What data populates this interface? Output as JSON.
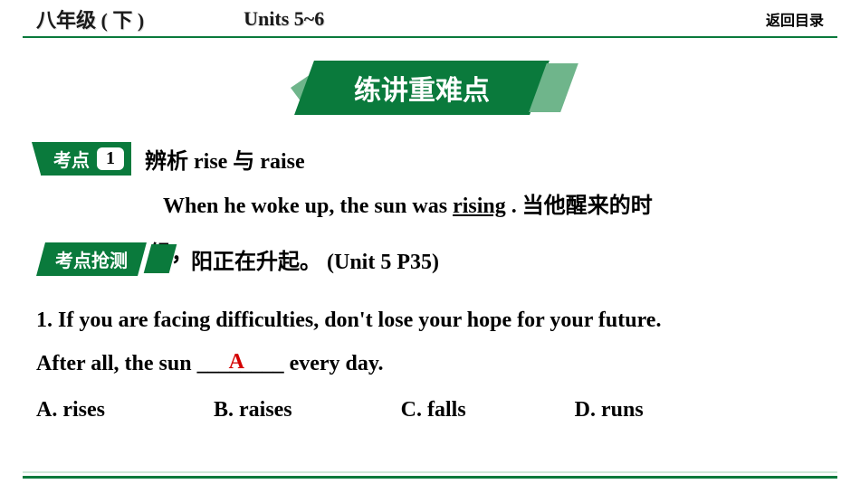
{
  "header": {
    "grade": "八年级 ( 下 )",
    "units": "Units 5~6",
    "returnMenu": "返回目录"
  },
  "banner": {
    "title": "练讲重难点"
  },
  "kaodian": {
    "label": "考点",
    "number": "1",
    "title": "辨析 rise 与 raise"
  },
  "example": {
    "sentence_prefix": "When he woke up, the sun was ",
    "sentence_underlined": "rising",
    "sentence_suffix": " .  当他醒来的时",
    "line2": "候，",
    "line3_cn": "阳正在升起。",
    "line3_ref": " (Unit 5 P35)"
  },
  "qiangce": {
    "label": "考点抢测"
  },
  "question": {
    "text1": "1. If you are facing difficulties, don't lose your hope for your future.",
    "text2_prefix": "After all, the sun ",
    "text2_suffix": " every day.",
    "answer": "A",
    "options": {
      "a": "A. rises",
      "b": "B.  raises",
      "c": "C. falls",
      "d": "D. runs"
    }
  },
  "colors": {
    "primary_green": "#0a7a3c",
    "light_green": "#6fb58b",
    "red": "#d40000",
    "footer_light": "#cfe7d8"
  }
}
